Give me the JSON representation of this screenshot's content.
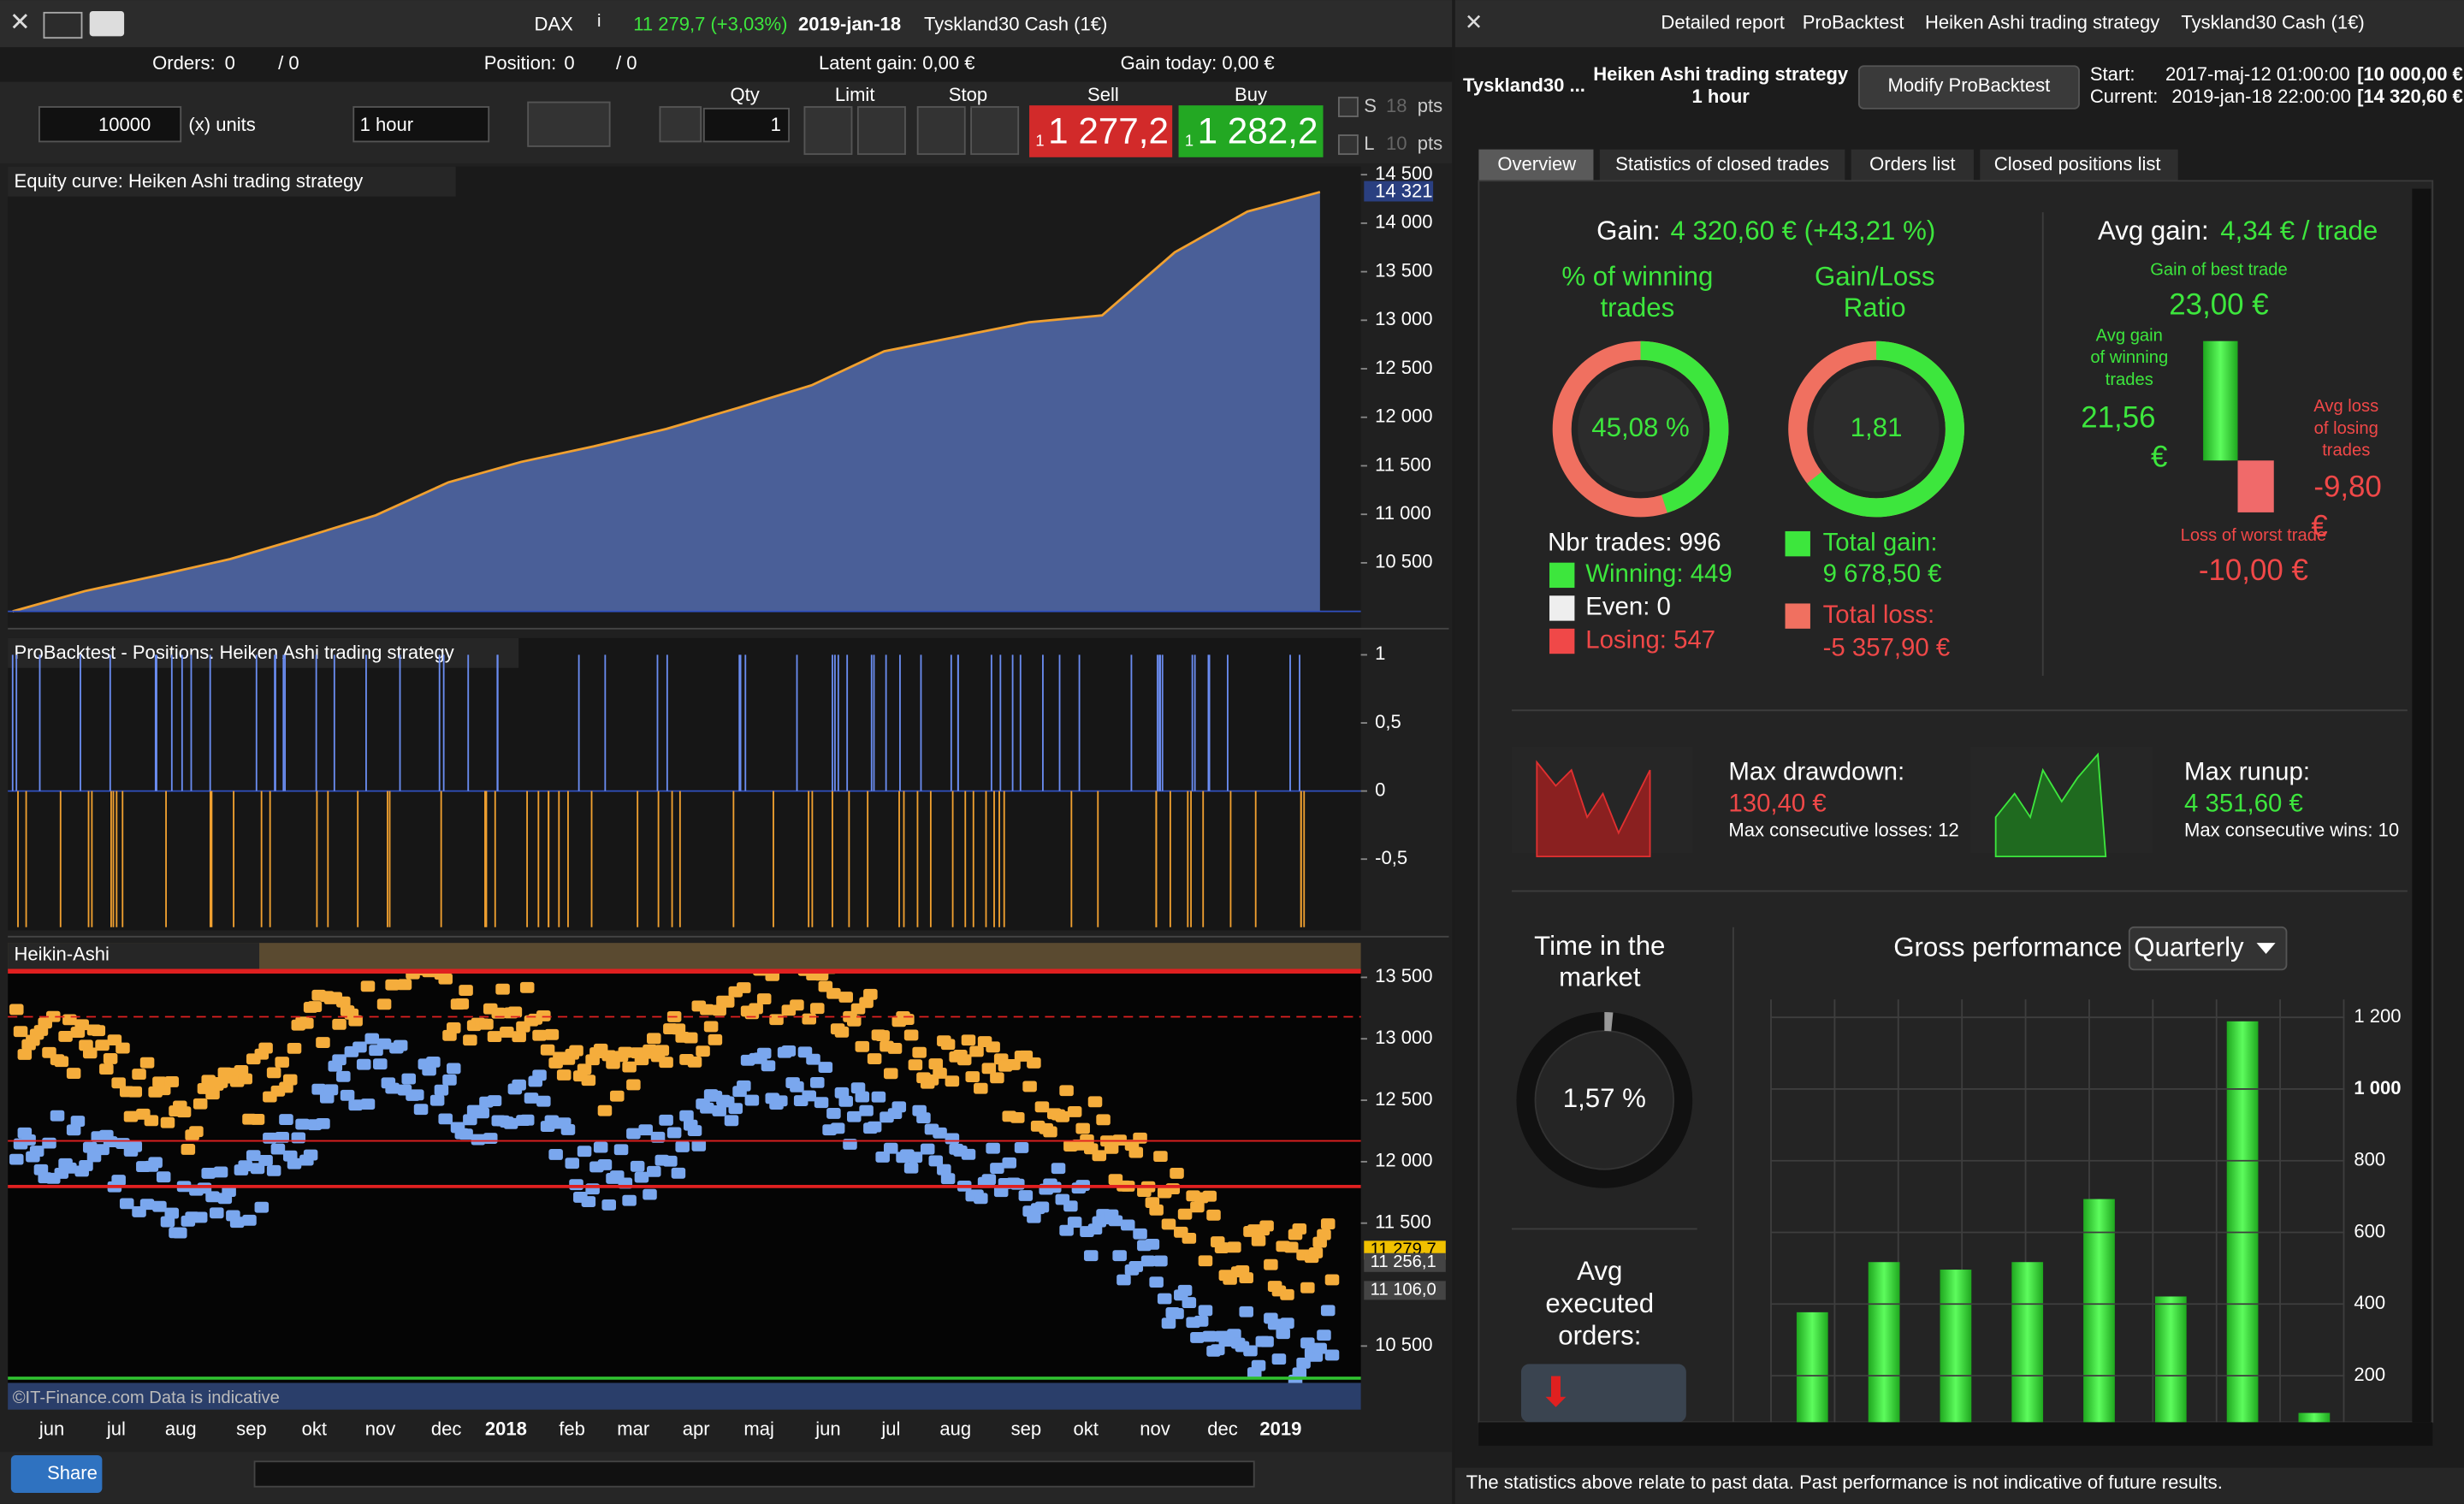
{
  "left": {
    "title_bar": {
      "instrument": "DAX",
      "info": "i",
      "change": "11 279,7 (+3,03%)",
      "date": "2019-jan-18",
      "market": "Tyskland30 Cash (1€)"
    },
    "status": {
      "orders": "Orders:",
      "orders_count": "0",
      "orders_total": "/ 0",
      "position": "Position:",
      "position_count": "0",
      "position_total": "/ 0",
      "latent_gain": "Latent gain: 0,00 €",
      "gain_today": "Gain today: 0,00 €"
    },
    "order_panel": {
      "amount": "10000",
      "unit": "(x) units",
      "timeframe": "1 hour",
      "qty_label": "Qty",
      "qty": "1",
      "limit": "Limit",
      "stop": "Stop",
      "sell": "Sell",
      "sell_prefix": "1",
      "sell_price": "1 277,2",
      "buy": "Buy",
      "buy_prefix": "1",
      "buy_price": "1 282,2",
      "s": "S",
      "s_pts": "18",
      "l": "L",
      "l_pts": "10",
      "pts_s": "pts",
      "pts_l": "pts"
    },
    "equity": {
      "type": "area",
      "title": "Equity curve: Heiken Ashi trading strategy",
      "ylim": [
        10000,
        14550
      ],
      "yticks": [
        {
          "value": 10500,
          "label": "10 500"
        },
        {
          "value": 11000,
          "label": "11 000"
        },
        {
          "value": 11500,
          "label": "11 500"
        },
        {
          "value": 12000,
          "label": "12 000"
        },
        {
          "value": 12500,
          "label": "12 500"
        },
        {
          "value": 13000,
          "label": "13 000"
        },
        {
          "value": 13500,
          "label": "13 500"
        },
        {
          "value": 14000,
          "label": "14 000"
        },
        {
          "value": 14500,
          "label": "14 500"
        }
      ],
      "values": [
        10000,
        10210,
        10370,
        10540,
        10760,
        10990,
        11330,
        11540,
        11700,
        11880,
        12100,
        12330,
        12680,
        12830,
        12980,
        13050,
        13700,
        14120,
        14321
      ],
      "last_label": "14 321"
    },
    "positions": {
      "title": "ProBacktest - Positions: Heiken Ashi trading strategy",
      "ylim": [
        -1,
        1.1
      ],
      "yticks": [
        1,
        {
          "value": 0.5,
          "label": "0,5"
        },
        0,
        {
          "value": -0.5,
          "label": "-0,5"
        }
      ]
    },
    "price": {
      "title": "Heikin-Ashi",
      "ylim": [
        10200,
        13550
      ],
      "yticks": [
        {
          "value": 10500,
          "label": "10 500"
        },
        {
          "value": 11500,
          "label": "11 500"
        },
        {
          "value": 12000,
          "label": "12 000"
        },
        {
          "value": 12500,
          "label": "12 500"
        },
        {
          "value": 13000,
          "label": "13 000"
        },
        {
          "value": 13500,
          "label": "13 500"
        }
      ],
      "price_labels": [
        {
          "value": 11279.7,
          "label": "11 279,7"
        },
        {
          "value": 11256.1,
          "label": "11 256,1"
        },
        {
          "value": 11106.0,
          "label": "11 106,0"
        }
      ],
      "watermark": "©IT-Finance.com  Data is indicative"
    },
    "x_axis": [
      "jun",
      "jul",
      "aug",
      "sep",
      "okt",
      "nov",
      "dec",
      "2018",
      "feb",
      "mar",
      "apr",
      "maj",
      "jun",
      "jul",
      "aug",
      "sep",
      "okt",
      "nov",
      "dec",
      "2019"
    ],
    "bottom": {
      "share": "Share"
    }
  },
  "right": {
    "title_bar": {
      "report": "Detailed report",
      "tool": "ProBacktest",
      "strategy": "Heiken Ashi trading strategy",
      "market": "Tyskland30 Cash (1€)"
    },
    "info": {
      "market": "Tyskland30 ...",
      "strategy": "Heiken Ashi trading strategy",
      "timeframe": "1 hour",
      "button": "Modify ProBacktest",
      "start_label": "Start:",
      "start": "2017-maj-12 01:00:00",
      "start_value": "[10 000,00 €",
      "current_label": "Current:",
      "current": "2019-jan-18 22:00:00",
      "current_value": "[14 320,60 €"
    },
    "tabs": [
      "Overview",
      "Statistics of closed trades",
      "Orders list",
      "Closed positions list"
    ],
    "overview": {
      "gain_label": "Gain:",
      "gain": "4 320,60 € (+43,21 %)",
      "winning_title": [
        "% of winning",
        "trades"
      ],
      "winning_pct": {
        "value": 45.08,
        "label": "45,08 %"
      },
      "ratio_title": [
        "Gain/Loss",
        "Ratio"
      ],
      "ratio": {
        "value": 1.81,
        "label": "1,81"
      },
      "nbr_trades": "Nbr trades: 996",
      "winning": "Winning: 449",
      "even": "Even: 0",
      "losing": "Losing: 547",
      "total_gain_label": "Total gain:",
      "total_gain": "9 678,50 €",
      "total_loss_label": "Total loss:",
      "total_loss": "-5 357,90 €",
      "avg_gain_label": "Avg gain:",
      "avg_gain": "4,34 € / trade",
      "best_label": "Gain of best trade",
      "best": "23,00 €",
      "avg_win_label": [
        "Avg gain",
        "of winning",
        "trades"
      ],
      "avg_win": [
        "21,56",
        "€"
      ],
      "avg_loss_label": [
        "Avg loss",
        "of losing",
        "trades"
      ],
      "avg_loss": [
        "-9,80",
        "€"
      ],
      "worst_label": "Loss of worst trade",
      "worst": "-10,00 €",
      "drawdown_label": "Max drawdown:",
      "drawdown": "130,40 €",
      "losses": "Max consecutive losses: 12",
      "runup_label": "Max runup:",
      "runup": "4 351,60 €",
      "wins": "Max consecutive wins: 10",
      "time_title": [
        "Time in the",
        "market"
      ],
      "time_pct": {
        "value": 1.57,
        "label": "1,57 %"
      },
      "orders_title": [
        "Avg",
        "executed",
        "orders:"
      ]
    },
    "gross_performance": {
      "type": "bar",
      "title": "Gross performance",
      "period": "Quarterly",
      "color": "#3de63d",
      "ylim": [
        0,
        1250
      ],
      "yticks": [
        200,
        400,
        600,
        800,
        {
          "value": 1000,
          "label": "1 000"
        },
        {
          "value": 1200,
          "label": "1 200"
        }
      ],
      "values": [
        377,
        517,
        496,
        517,
        693,
        421,
        1189,
        96
      ]
    },
    "footer": "The statistics above relate to past data. Past performance is not indicative of future results."
  }
}
